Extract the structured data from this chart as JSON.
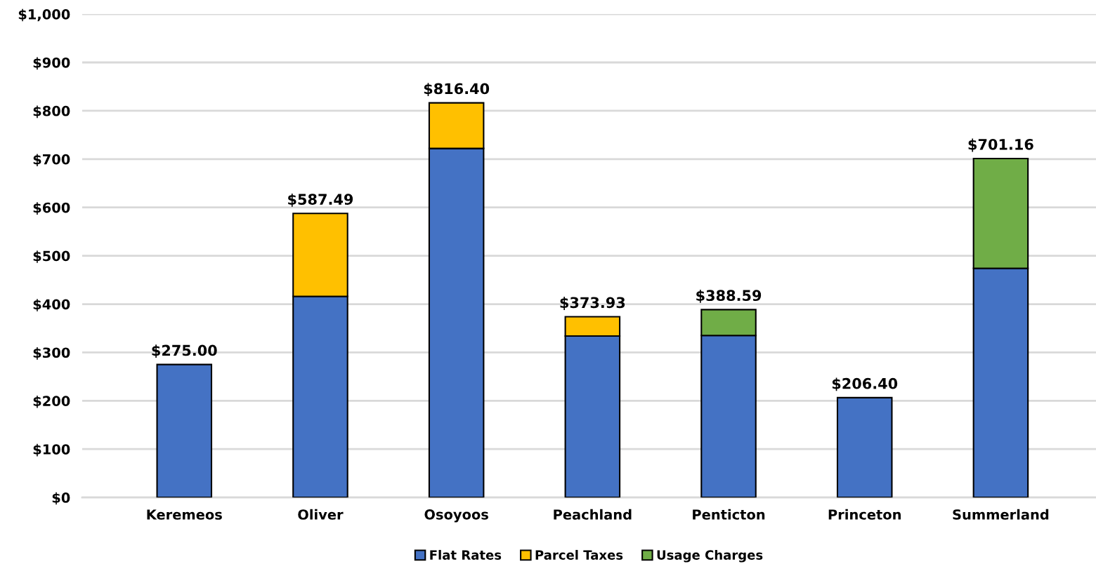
{
  "chart_data": {
    "type": "bar",
    "stacked": true,
    "categories": [
      "Keremeos",
      "Oliver",
      "Osoyoos",
      "Peachland",
      "Penticton",
      "Princeton",
      "Summerland"
    ],
    "series": [
      {
        "name": "Flat Rates",
        "color": "#4472c4",
        "values": [
          275.0,
          416,
          722,
          334,
          335,
          206.4,
          474
        ]
      },
      {
        "name": "Parcel Taxes",
        "color": "#ffc000",
        "values": [
          null,
          171.49,
          94.4,
          39.93,
          null,
          null,
          null
        ]
      },
      {
        "name": "Usage Charges",
        "color": "#70ad47",
        "values": [
          null,
          null,
          null,
          null,
          53.59,
          null,
          227.16
        ]
      }
    ],
    "totals": [
      "$275.00",
      "$587.49",
      "$816.40",
      "$373.93",
      "$388.59",
      "$206.40",
      "$701.16"
    ],
    "ylim": [
      0,
      1000
    ],
    "yticks": [
      {
        "value": 0,
        "label": "$0"
      },
      {
        "value": 100,
        "label": "$100"
      },
      {
        "value": 200,
        "label": "$200"
      },
      {
        "value": 300,
        "label": "$300"
      },
      {
        "value": 400,
        "label": "$400"
      },
      {
        "value": 500,
        "label": "$500"
      },
      {
        "value": 600,
        "label": "$600"
      },
      {
        "value": 700,
        "label": "$700"
      },
      {
        "value": 800,
        "label": "$800"
      },
      {
        "value": 900,
        "label": "$900"
      },
      {
        "value": 1000,
        "label": "$1,000"
      }
    ],
    "grid": "y",
    "legend": "bottom"
  }
}
